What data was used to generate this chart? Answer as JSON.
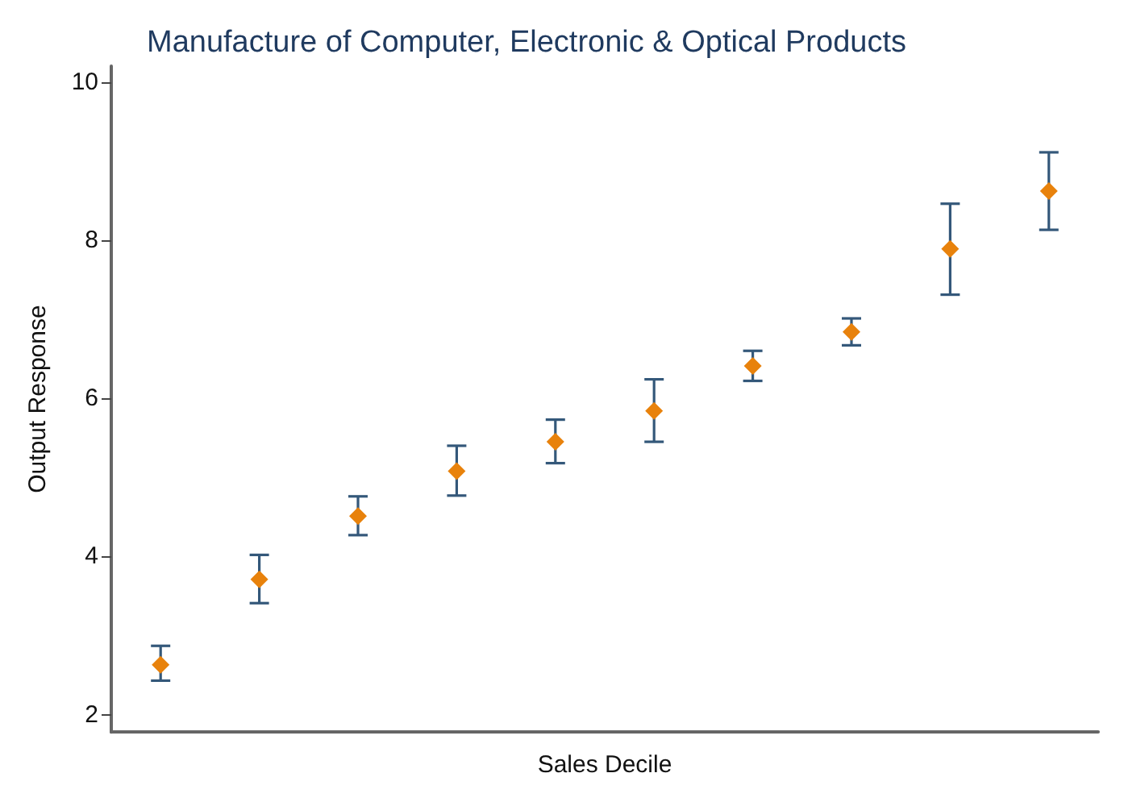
{
  "chart_data": {
    "type": "scatter",
    "title": "Manufacture of Computer, Electronic & Optical Products",
    "xlabel": "Sales Decile",
    "ylabel": "Output Response",
    "categories": [
      null,
      null,
      null,
      null,
      null,
      null,
      null,
      null,
      null,
      null
    ],
    "series": [
      {
        "color": "#e8820c",
        "values": [
          2.63,
          3.71,
          4.51,
          5.08,
          5.45,
          5.84,
          6.41,
          6.84,
          7.89,
          8.62
        ],
        "errors": [
          [
            2.43,
            2.87
          ],
          [
            3.41,
            4.02
          ],
          [
            4.27,
            4.76
          ],
          [
            4.77,
            5.4
          ],
          [
            5.18,
            5.73
          ],
          [
            5.45,
            6.24
          ],
          [
            6.22,
            6.6
          ],
          [
            6.67,
            7.01
          ],
          [
            7.31,
            8.46
          ],
          [
            8.13,
            9.11
          ]
        ]
      }
    ],
    "ylim": [
      1.78,
      10.2
    ],
    "yticks": [
      2,
      4,
      6,
      8,
      10
    ],
    "grid": false,
    "marker": "diamond"
  }
}
